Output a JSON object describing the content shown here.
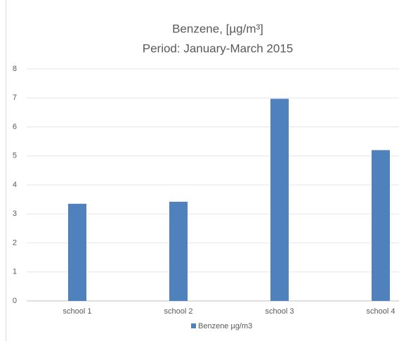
{
  "chart_data": {
    "type": "bar",
    "title": "Benzene, [µg/m³]",
    "subtitle": "Period: January-March 2015",
    "categories": [
      "school 1",
      "school 2",
      "school 3",
      "school 4"
    ],
    "series": [
      {
        "name": "Benzene µg/m3",
        "color": "#4f81bd",
        "values": [
          3.35,
          3.42,
          6.97,
          5.2
        ]
      }
    ],
    "ylim": [
      0,
      8
    ],
    "yticks": [
      0,
      1,
      2,
      3,
      4,
      5,
      6,
      7,
      8
    ],
    "grid": true,
    "legend": "bottom"
  }
}
